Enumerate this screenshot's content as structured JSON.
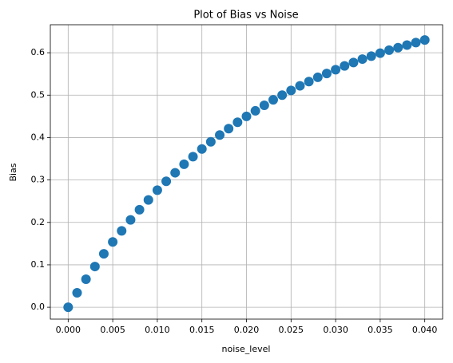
{
  "chart_data": {
    "type": "scatter",
    "title": "Plot of Bias vs Noise",
    "x_label": "noise_level",
    "y_label": "Bias",
    "color": "#1f77b4",
    "grid": true,
    "xlim": [
      -0.002,
      0.042
    ],
    "ylim": [
      -0.028,
      0.666
    ],
    "xticks": [
      {
        "value": 0,
        "label": "0.000"
      },
      {
        "value": 0.005,
        "label": "0.005"
      },
      {
        "value": 0.01,
        "label": "0.010"
      },
      {
        "value": 0.015,
        "label": "0.015"
      },
      {
        "value": 0.02,
        "label": "0.020"
      },
      {
        "value": 0.025,
        "label": "0.025"
      },
      {
        "value": 0.03,
        "label": "0.030"
      },
      {
        "value": 0.035,
        "label": "0.035"
      },
      {
        "value": 0.04,
        "label": "0.040"
      }
    ],
    "yticks": [
      {
        "value": 0,
        "label": "0.0"
      },
      0.1,
      0.2,
      0.3,
      0.4,
      0.5,
      0.6
    ],
    "x": [
      0,
      0.001,
      0.002,
      0.003,
      0.004,
      0.005,
      0.006,
      0.007,
      0.008,
      0.009,
      0.01,
      0.011,
      0.012,
      0.013,
      0.014,
      0.015,
      0.016,
      0.017,
      0.018,
      0.019,
      0.02,
      0.021,
      0.022,
      0.023,
      0.024,
      0.025,
      0.026,
      0.027,
      0.028,
      0.029,
      0.03,
      0.031,
      0.032,
      0.033,
      0.034,
      0.035,
      0.036,
      0.037,
      0.038,
      0.039,
      0.04
    ],
    "values": [
      0,
      0.034,
      0.066,
      0.096,
      0.126,
      0.154,
      0.18,
      0.206,
      0.23,
      0.253,
      0.276,
      0.297,
      0.317,
      0.337,
      0.355,
      0.373,
      0.39,
      0.406,
      0.421,
      0.436,
      0.45,
      0.463,
      0.476,
      0.489,
      0.5,
      0.511,
      0.522,
      0.532,
      0.542,
      0.551,
      0.56,
      0.569,
      0.577,
      0.585,
      0.592,
      0.599,
      0.606,
      0.612,
      0.618,
      0.624,
      0.63
    ]
  }
}
